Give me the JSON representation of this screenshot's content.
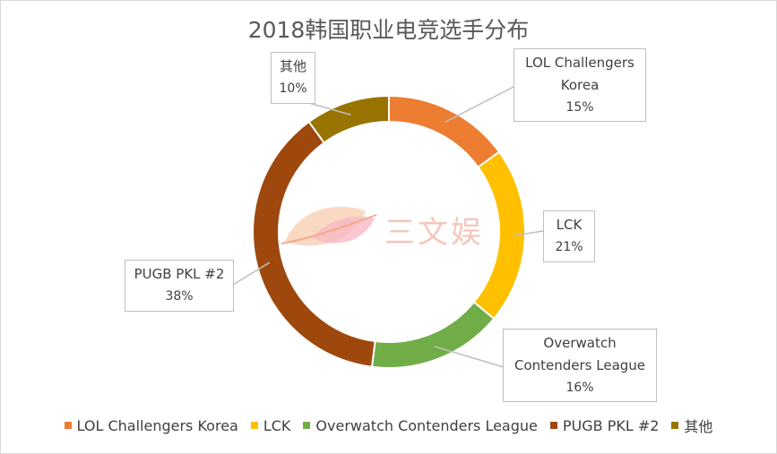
{
  "chart_data": {
    "type": "pie",
    "subtype": "donut",
    "title": "2018韩国职业电竞选手分布",
    "slices": [
      {
        "label": "LOL Challengers Korea",
        "callout_lines": [
          "LOL Challengers",
          "Korea"
        ],
        "value": 15,
        "value_label": "15%",
        "color": "#ED7D31"
      },
      {
        "label": "LCK",
        "callout_lines": [
          "LCK"
        ],
        "value": 21,
        "value_label": "21%",
        "color": "#FFC000"
      },
      {
        "label": "Overwatch Contenders League",
        "callout_lines": [
          "Overwatch",
          "Contenders League"
        ],
        "value": 16,
        "value_label": "16%",
        "color": "#70AD47"
      },
      {
        "label": "PUGB PKL #2",
        "callout_lines": [
          "PUGB PKL #2"
        ],
        "value": 38,
        "value_label": "38%",
        "color": "#9E480E"
      },
      {
        "label": "其他",
        "callout_lines": [
          "其他"
        ],
        "value": 10,
        "value_label": "10%",
        "color": "#997300"
      }
    ],
    "legend_position": "bottom"
  },
  "watermark": {
    "text": "三文娱"
  }
}
